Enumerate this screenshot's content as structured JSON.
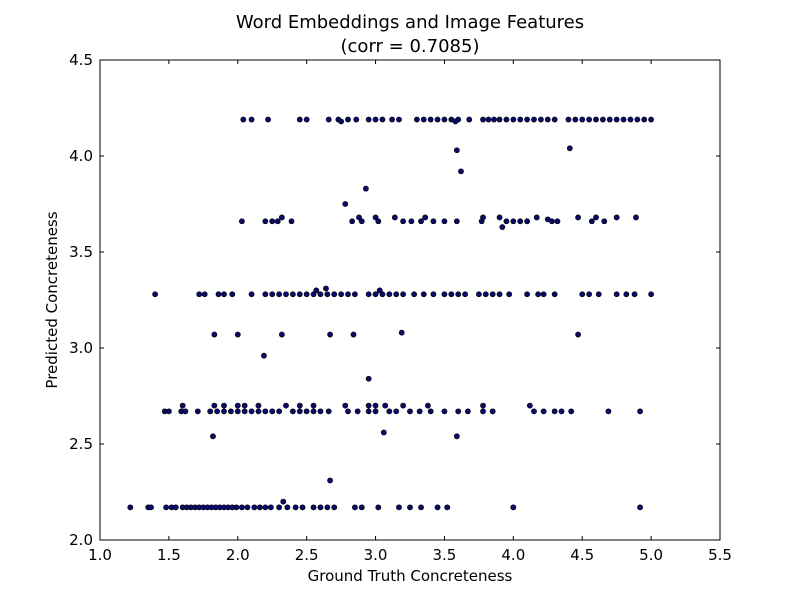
{
  "chart_data": {
    "type": "scatter",
    "title": "Word Embeddings and Image Features",
    "subtitle": "(corr = 0.7085)",
    "xlabel": "Ground Truth Concreteness",
    "ylabel": "Predicted Concreteness",
    "xlim": [
      1.0,
      5.5
    ],
    "ylim": [
      2.0,
      4.5
    ],
    "xticks": [
      "1.0",
      "1.5",
      "2.0",
      "2.5",
      "3.0",
      "3.5",
      "4.0",
      "4.5",
      "5.0",
      "5.5"
    ],
    "yticks": [
      "2.0",
      "2.5",
      "3.0",
      "3.5",
      "4.0",
      "4.5"
    ],
    "grid": false,
    "marker_color": "#0a0a6b",
    "marker_edge": "#000000",
    "points": [
      [
        1.22,
        2.17
      ],
      [
        1.35,
        2.17
      ],
      [
        1.37,
        2.17
      ],
      [
        1.48,
        2.17
      ],
      [
        1.52,
        2.17
      ],
      [
        1.55,
        2.17
      ],
      [
        1.6,
        2.17
      ],
      [
        1.63,
        2.17
      ],
      [
        1.66,
        2.17
      ],
      [
        1.69,
        2.17
      ],
      [
        1.72,
        2.17
      ],
      [
        1.75,
        2.17
      ],
      [
        1.78,
        2.17
      ],
      [
        1.81,
        2.17
      ],
      [
        1.84,
        2.17
      ],
      [
        1.87,
        2.17
      ],
      [
        1.9,
        2.17
      ],
      [
        1.93,
        2.17
      ],
      [
        1.96,
        2.17
      ],
      [
        1.99,
        2.17
      ],
      [
        2.03,
        2.17
      ],
      [
        2.07,
        2.17
      ],
      [
        2.12,
        2.17
      ],
      [
        2.16,
        2.17
      ],
      [
        2.2,
        2.17
      ],
      [
        2.24,
        2.17
      ],
      [
        2.3,
        2.17
      ],
      [
        2.36,
        2.17
      ],
      [
        2.42,
        2.17
      ],
      [
        2.47,
        2.17
      ],
      [
        2.55,
        2.17
      ],
      [
        2.6,
        2.17
      ],
      [
        2.65,
        2.17
      ],
      [
        2.7,
        2.17
      ],
      [
        2.85,
        2.17
      ],
      [
        2.9,
        2.17
      ],
      [
        3.02,
        2.17
      ],
      [
        3.17,
        2.17
      ],
      [
        3.25,
        2.17
      ],
      [
        3.33,
        2.17
      ],
      [
        3.45,
        2.17
      ],
      [
        3.52,
        2.17
      ],
      [
        4.0,
        2.17
      ],
      [
        4.92,
        2.17
      ],
      [
        2.33,
        2.2
      ],
      [
        2.67,
        2.31
      ],
      [
        1.82,
        2.54
      ],
      [
        3.59,
        2.54
      ],
      [
        3.06,
        2.56
      ],
      [
        1.47,
        2.67
      ],
      [
        1.5,
        2.67
      ],
      [
        1.59,
        2.67
      ],
      [
        1.62,
        2.67
      ],
      [
        1.71,
        2.67
      ],
      [
        1.8,
        2.67
      ],
      [
        1.85,
        2.67
      ],
      [
        1.9,
        2.67
      ],
      [
        1.95,
        2.67
      ],
      [
        2.0,
        2.67
      ],
      [
        2.05,
        2.67
      ],
      [
        2.1,
        2.67
      ],
      [
        2.15,
        2.67
      ],
      [
        2.2,
        2.67
      ],
      [
        2.25,
        2.67
      ],
      [
        2.3,
        2.67
      ],
      [
        2.4,
        2.67
      ],
      [
        2.45,
        2.67
      ],
      [
        2.5,
        2.67
      ],
      [
        2.55,
        2.67
      ],
      [
        2.6,
        2.67
      ],
      [
        2.66,
        2.67
      ],
      [
        2.8,
        2.67
      ],
      [
        2.87,
        2.67
      ],
      [
        2.95,
        2.67
      ],
      [
        3.0,
        2.67
      ],
      [
        3.1,
        2.67
      ],
      [
        3.15,
        2.67
      ],
      [
        3.25,
        2.67
      ],
      [
        3.32,
        2.67
      ],
      [
        3.4,
        2.67
      ],
      [
        3.5,
        2.67
      ],
      [
        3.6,
        2.67
      ],
      [
        3.67,
        2.67
      ],
      [
        3.78,
        2.67
      ],
      [
        3.85,
        2.67
      ],
      [
        4.15,
        2.67
      ],
      [
        4.22,
        2.67
      ],
      [
        4.3,
        2.67
      ],
      [
        4.35,
        2.67
      ],
      [
        4.42,
        2.67
      ],
      [
        4.69,
        2.67
      ],
      [
        4.92,
        2.67
      ],
      [
        1.6,
        2.7
      ],
      [
        1.83,
        2.7
      ],
      [
        1.9,
        2.7
      ],
      [
        2.0,
        2.7
      ],
      [
        2.05,
        2.7
      ],
      [
        2.15,
        2.7
      ],
      [
        2.35,
        2.7
      ],
      [
        2.45,
        2.7
      ],
      [
        2.55,
        2.7
      ],
      [
        2.78,
        2.7
      ],
      [
        2.95,
        2.7
      ],
      [
        3.0,
        2.7
      ],
      [
        3.07,
        2.7
      ],
      [
        3.2,
        2.7
      ],
      [
        3.38,
        2.7
      ],
      [
        3.78,
        2.7
      ],
      [
        4.12,
        2.7
      ],
      [
        2.95,
        2.84
      ],
      [
        2.19,
        2.96
      ],
      [
        1.83,
        3.07
      ],
      [
        2.0,
        3.07
      ],
      [
        2.32,
        3.07
      ],
      [
        2.67,
        3.07
      ],
      [
        2.84,
        3.07
      ],
      [
        3.19,
        3.08
      ],
      [
        4.47,
        3.07
      ],
      [
        1.4,
        3.28
      ],
      [
        1.72,
        3.28
      ],
      [
        1.76,
        3.28
      ],
      [
        1.86,
        3.28
      ],
      [
        1.9,
        3.28
      ],
      [
        1.96,
        3.28
      ],
      [
        2.1,
        3.28
      ],
      [
        2.2,
        3.28
      ],
      [
        2.25,
        3.28
      ],
      [
        2.3,
        3.28
      ],
      [
        2.35,
        3.28
      ],
      [
        2.4,
        3.28
      ],
      [
        2.45,
        3.28
      ],
      [
        2.5,
        3.28
      ],
      [
        2.55,
        3.28
      ],
      [
        2.6,
        3.28
      ],
      [
        2.65,
        3.28
      ],
      [
        2.7,
        3.28
      ],
      [
        2.75,
        3.28
      ],
      [
        2.8,
        3.28
      ],
      [
        2.85,
        3.28
      ],
      [
        2.95,
        3.28
      ],
      [
        3.0,
        3.28
      ],
      [
        3.05,
        3.28
      ],
      [
        3.1,
        3.28
      ],
      [
        3.15,
        3.28
      ],
      [
        3.2,
        3.28
      ],
      [
        3.28,
        3.28
      ],
      [
        3.35,
        3.28
      ],
      [
        3.42,
        3.28
      ],
      [
        3.5,
        3.28
      ],
      [
        3.55,
        3.28
      ],
      [
        3.6,
        3.28
      ],
      [
        3.65,
        3.28
      ],
      [
        3.75,
        3.28
      ],
      [
        3.8,
        3.28
      ],
      [
        3.85,
        3.28
      ],
      [
        3.9,
        3.28
      ],
      [
        3.97,
        3.28
      ],
      [
        4.1,
        3.28
      ],
      [
        4.18,
        3.28
      ],
      [
        4.22,
        3.28
      ],
      [
        4.3,
        3.28
      ],
      [
        4.5,
        3.28
      ],
      [
        4.55,
        3.28
      ],
      [
        4.62,
        3.28
      ],
      [
        4.75,
        3.28
      ],
      [
        4.82,
        3.28
      ],
      [
        4.88,
        3.28
      ],
      [
        5.0,
        3.28
      ],
      [
        2.57,
        3.3
      ],
      [
        2.64,
        3.31
      ],
      [
        3.03,
        3.3
      ],
      [
        2.03,
        3.66
      ],
      [
        2.2,
        3.66
      ],
      [
        2.25,
        3.66
      ],
      [
        2.29,
        3.66
      ],
      [
        2.39,
        3.66
      ],
      [
        2.83,
        3.66
      ],
      [
        2.9,
        3.66
      ],
      [
        3.02,
        3.66
      ],
      [
        3.2,
        3.66
      ],
      [
        3.26,
        3.66
      ],
      [
        3.33,
        3.66
      ],
      [
        3.42,
        3.66
      ],
      [
        3.5,
        3.66
      ],
      [
        3.59,
        3.66
      ],
      [
        3.77,
        3.66
      ],
      [
        3.95,
        3.66
      ],
      [
        4.0,
        3.66
      ],
      [
        4.05,
        3.66
      ],
      [
        4.1,
        3.66
      ],
      [
        4.28,
        3.66
      ],
      [
        4.32,
        3.66
      ],
      [
        4.57,
        3.66
      ],
      [
        4.66,
        3.66
      ],
      [
        2.32,
        3.68
      ],
      [
        2.88,
        3.68
      ],
      [
        3.0,
        3.68
      ],
      [
        3.14,
        3.68
      ],
      [
        3.36,
        3.68
      ],
      [
        3.78,
        3.68
      ],
      [
        3.9,
        3.68
      ],
      [
        4.17,
        3.68
      ],
      [
        4.25,
        3.67
      ],
      [
        4.47,
        3.68
      ],
      [
        4.6,
        3.68
      ],
      [
        4.75,
        3.68
      ],
      [
        4.89,
        3.68
      ],
      [
        3.92,
        3.63
      ],
      [
        2.78,
        3.75
      ],
      [
        2.93,
        3.83
      ],
      [
        3.62,
        3.92
      ],
      [
        3.59,
        4.03
      ],
      [
        4.41,
        4.04
      ],
      [
        2.04,
        4.19
      ],
      [
        2.1,
        4.19
      ],
      [
        2.22,
        4.19
      ],
      [
        2.45,
        4.19
      ],
      [
        2.5,
        4.19
      ],
      [
        2.66,
        4.19
      ],
      [
        2.73,
        4.19
      ],
      [
        2.8,
        4.19
      ],
      [
        2.86,
        4.19
      ],
      [
        2.95,
        4.19
      ],
      [
        3.0,
        4.19
      ],
      [
        3.05,
        4.19
      ],
      [
        3.12,
        4.19
      ],
      [
        3.17,
        4.19
      ],
      [
        3.3,
        4.19
      ],
      [
        3.35,
        4.19
      ],
      [
        3.4,
        4.19
      ],
      [
        3.45,
        4.19
      ],
      [
        3.5,
        4.19
      ],
      [
        3.55,
        4.19
      ],
      [
        3.6,
        4.19
      ],
      [
        3.68,
        4.19
      ],
      [
        3.78,
        4.19
      ],
      [
        3.82,
        4.19
      ],
      [
        3.86,
        4.19
      ],
      [
        3.9,
        4.19
      ],
      [
        3.95,
        4.19
      ],
      [
        4.0,
        4.19
      ],
      [
        4.05,
        4.19
      ],
      [
        4.1,
        4.19
      ],
      [
        4.15,
        4.19
      ],
      [
        4.2,
        4.19
      ],
      [
        4.25,
        4.19
      ],
      [
        4.3,
        4.19
      ],
      [
        4.4,
        4.19
      ],
      [
        4.45,
        4.19
      ],
      [
        4.5,
        4.19
      ],
      [
        4.55,
        4.19
      ],
      [
        4.6,
        4.19
      ],
      [
        4.65,
        4.19
      ],
      [
        4.7,
        4.19
      ],
      [
        4.75,
        4.19
      ],
      [
        4.8,
        4.19
      ],
      [
        4.85,
        4.19
      ],
      [
        4.9,
        4.19
      ],
      [
        4.95,
        4.19
      ],
      [
        5.0,
        4.19
      ],
      [
        2.75,
        4.18
      ],
      [
        3.58,
        4.18
      ]
    ]
  }
}
